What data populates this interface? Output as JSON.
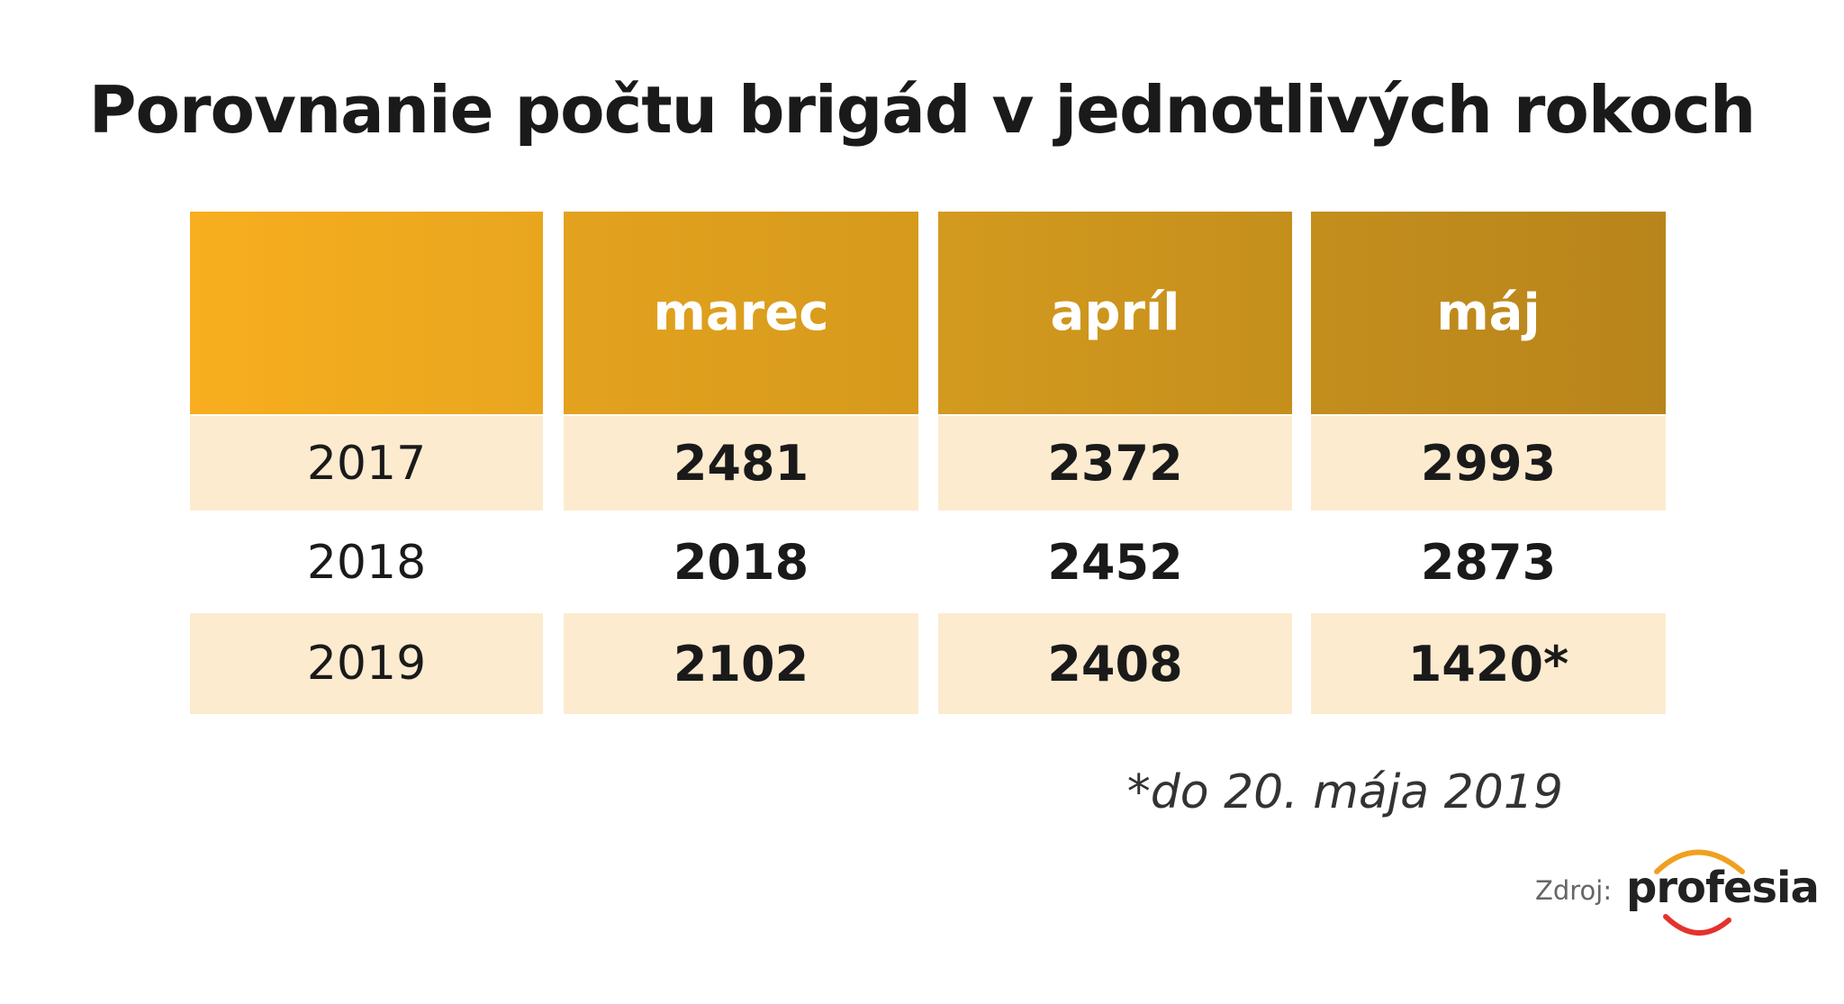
{
  "header": {
    "title": "Porovnanie počtu brigád v jednotlivých rokoch"
  },
  "table": {
    "columns": [
      "marec",
      "apríl",
      "máj"
    ],
    "rows": [
      [
        2017,
        2481,
        2372,
        2993
      ],
      [
        2018,
        2018,
        2452,
        2873
      ],
      [
        2019,
        2102,
        2408,
        "1420*"
      ]
    ]
  },
  "footnote": "*do 20. mája 2019",
  "source": {
    "label": "Zdroj:",
    "logo": "profesia"
  }
}
